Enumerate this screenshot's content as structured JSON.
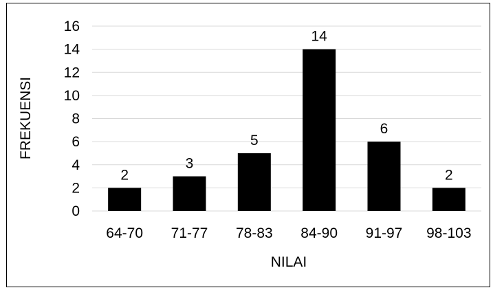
{
  "chart_data": {
    "type": "bar",
    "categories": [
      "64-70",
      "71-77",
      "78-83",
      "84-90",
      "91-97",
      "98-103"
    ],
    "values": [
      2,
      3,
      5,
      14,
      6,
      2
    ],
    "data_labels": [
      "2",
      "3",
      "5",
      "14",
      "6",
      "2"
    ],
    "title": "",
    "xlabel": "NILAI",
    "ylabel": "FREKUENSI",
    "ylim": [
      0,
      16
    ],
    "yticks": [
      0,
      2,
      4,
      6,
      8,
      10,
      12,
      14,
      16
    ],
    "ytick_labels": [
      "0",
      "2",
      "4",
      "6",
      "8",
      "10",
      "12",
      "14",
      "16"
    ],
    "grid": true,
    "legend": "none",
    "bar_color": "#000000",
    "grid_color": "#d9d9d9"
  }
}
